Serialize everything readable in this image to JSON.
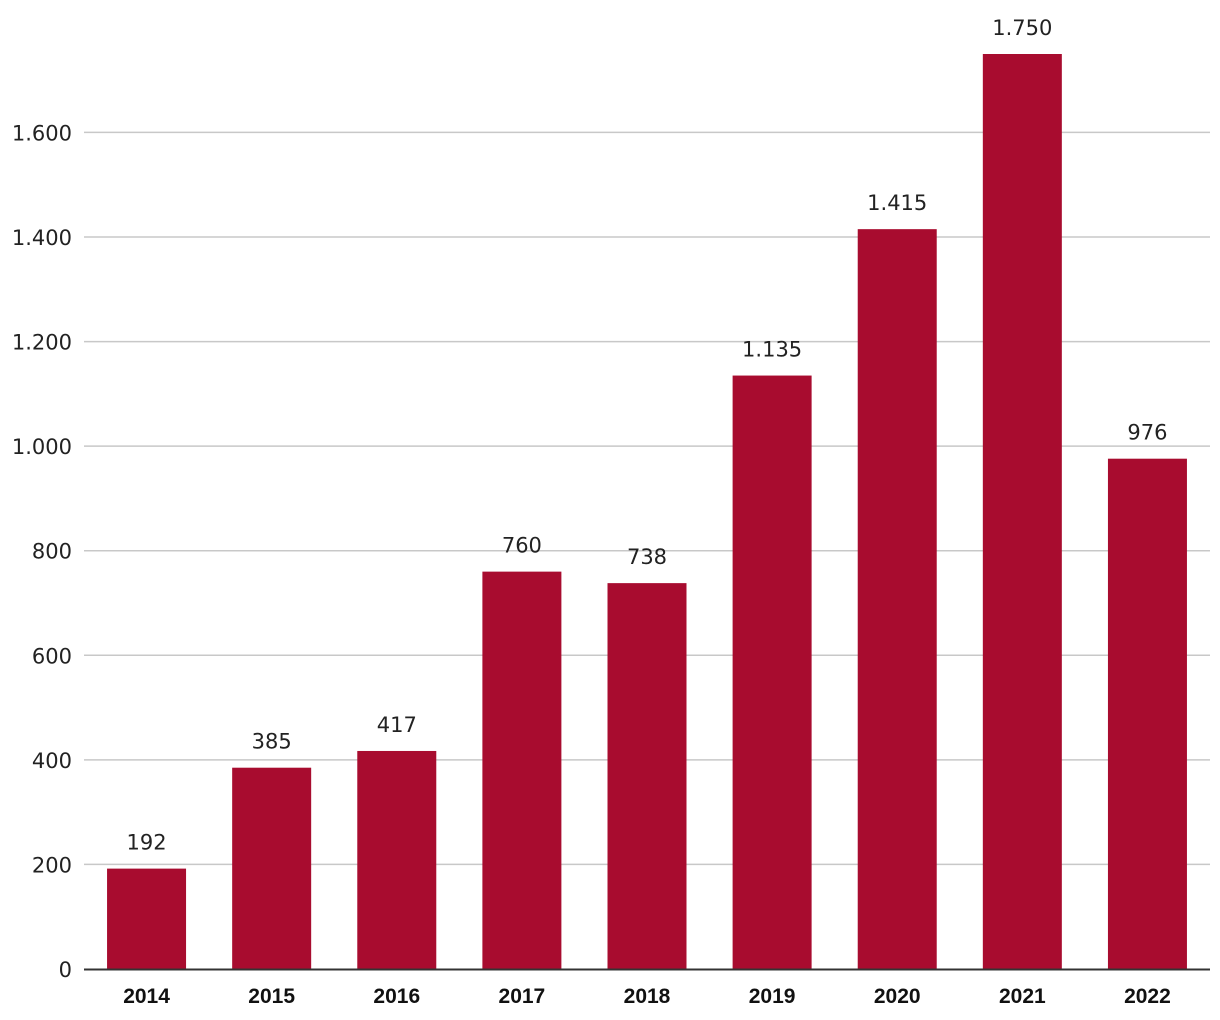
{
  "chart_data": {
    "type": "bar",
    "title": "",
    "xlabel": "",
    "ylabel": "",
    "categories": [
      "2014",
      "2015",
      "2016",
      "2017",
      "2018",
      "2019",
      "2020",
      "2021",
      "2022"
    ],
    "values": [
      192,
      385,
      417,
      760,
      738,
      1135,
      1415,
      1750,
      976
    ],
    "value_labels": [
      "192",
      "385",
      "417",
      "760",
      "738",
      "1.135",
      "1.415",
      "1.750",
      "976"
    ],
    "y_ticks": [
      0,
      200,
      400,
      600,
      800,
      1000,
      1200,
      1400,
      1600
    ],
    "y_tick_labels": [
      "0",
      "200",
      "400",
      "600",
      "800",
      "1.000",
      "1.200",
      "1.400",
      "1.600"
    ],
    "ylim": [
      0,
      1750
    ],
    "grid": true,
    "legend": "none",
    "colors": {
      "bar": "#A80C2F",
      "grid": "#C8C8C8",
      "axis": "#333333"
    }
  }
}
